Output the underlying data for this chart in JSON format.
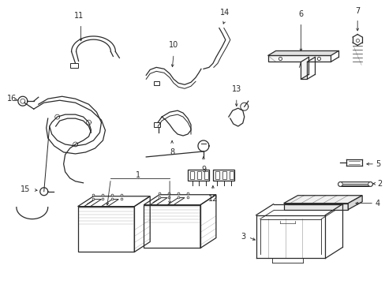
{
  "bg_color": "#ffffff",
  "line_color": "#2a2a2a",
  "fig_width": 4.89,
  "fig_height": 3.6,
  "dpi": 100,
  "label_fontsize": 7.0,
  "lw": 0.9
}
